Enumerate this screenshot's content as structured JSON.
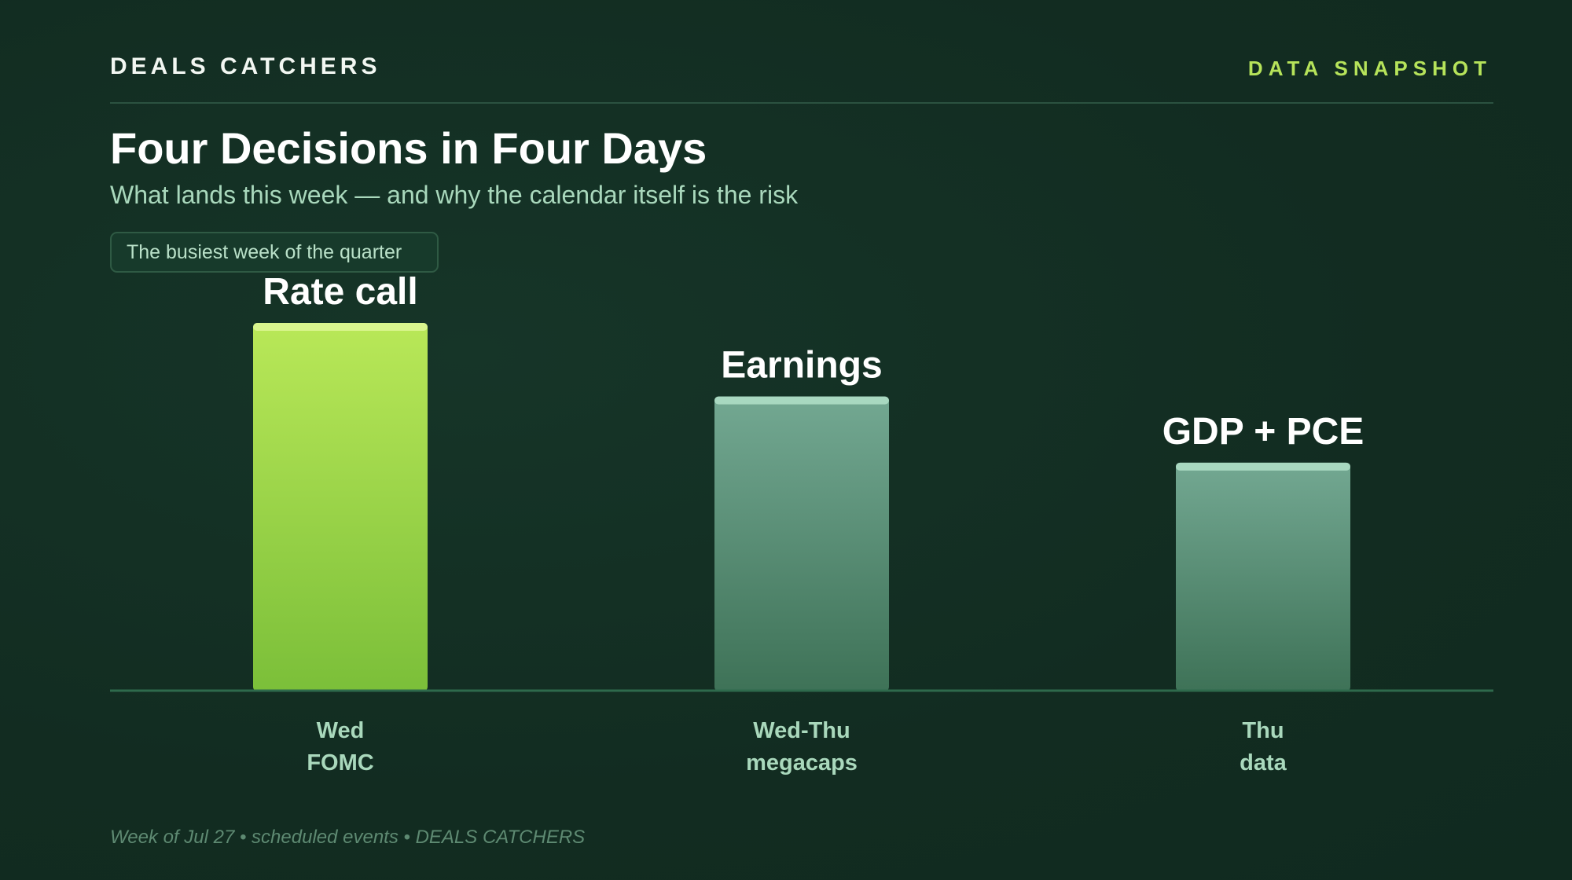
{
  "header": {
    "brand": "DEALS CATCHERS",
    "tag": "DATA SNAPSHOT"
  },
  "title": "Four Decisions in Four Days",
  "subtitle": "What lands this week — and why the calendar itself is the risk",
  "pill": "The busiest week of the quarter",
  "footer": "Week of Jul 27 • scheduled events • DEALS CATCHERS",
  "colors": {
    "accent": "#b6e35a",
    "bar_highlight": "#7fc23a",
    "bar_muted": "#4a8a6c",
    "axis": "#2e6a4c"
  },
  "chart_data": {
    "type": "bar",
    "categories": [
      [
        "Wed",
        "FOMC"
      ],
      [
        "Wed-Thu",
        "megacaps"
      ],
      [
        "Thu",
        "data"
      ]
    ],
    "bar_labels": [
      "Rate call",
      "Earnings",
      "GDP + PCE"
    ],
    "values": [
      100,
      80,
      62
    ],
    "highlight_index": 0,
    "ylim": [
      0,
      100
    ],
    "title": "",
    "xlabel": "",
    "ylabel": "",
    "grid": false,
    "legend": "none"
  }
}
